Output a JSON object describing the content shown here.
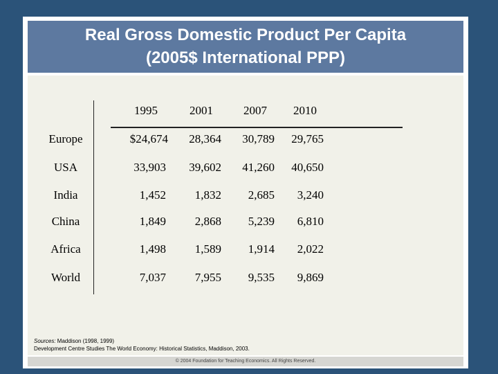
{
  "title": {
    "line1": "Real Gross Domestic Product Per Capita",
    "line2": "(2005$ International PPP)"
  },
  "table": {
    "columns": [
      "1995",
      "2001",
      "2007",
      "2010"
    ],
    "rows": [
      {
        "region": "Europe",
        "values": [
          "$24,674",
          "28,364",
          "30,789",
          "29,765"
        ]
      },
      {
        "region": "USA",
        "values": [
          "33,903",
          "39,602",
          "41,260",
          "40,650"
        ]
      },
      {
        "region": "India",
        "values": [
          "1,452",
          "1,832",
          "2,685",
          "3,240"
        ]
      },
      {
        "region": "China",
        "values": [
          "1,849",
          "2,868",
          "5,239",
          "6,810"
        ]
      },
      {
        "region": "Africa",
        "values": [
          "1,498",
          "1,589",
          "1,914",
          "2,022"
        ]
      },
      {
        "region": "World",
        "values": [
          "7,037",
          "7,955",
          "9,535",
          "9,869"
        ]
      }
    ]
  },
  "sources": {
    "label": "Sources:",
    "line1_rest": " Maddison (1998, 1999)",
    "line2": "Development Centre Studies The World Economy: Historical Statistics, Maddison, 2003."
  },
  "footer": "© 2004 Foundation for Teaching Economics. All Rights Reserved.",
  "colors": {
    "background": "#2b5379",
    "title_bar": "#5d79a0",
    "content": "#f1f1e9"
  }
}
